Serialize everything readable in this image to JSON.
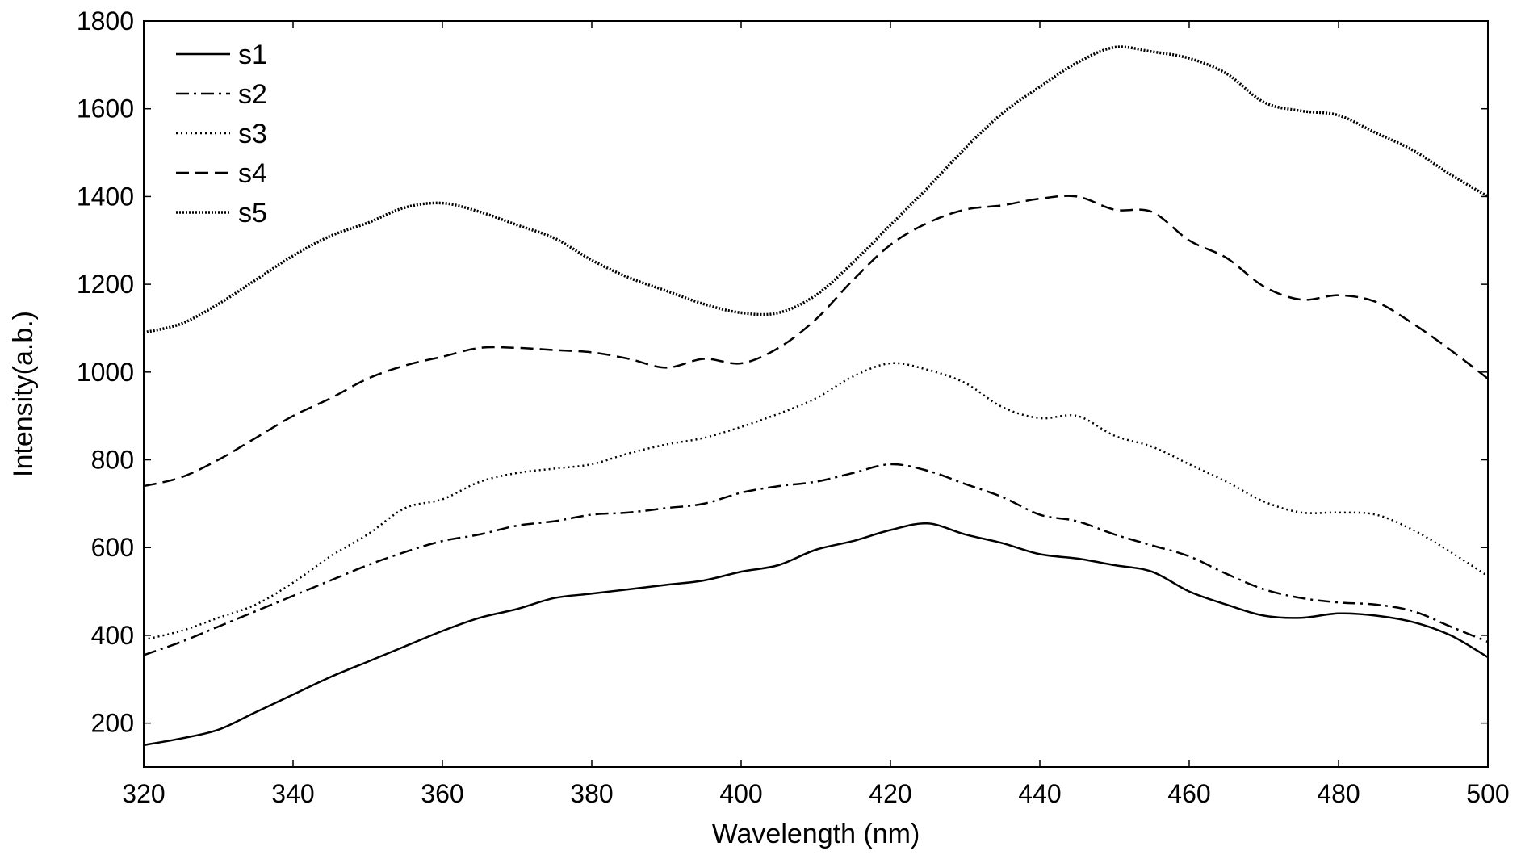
{
  "chart_data": {
    "type": "line",
    "title": "",
    "xlabel": "Wavelength (nm)",
    "ylabel": "Intensity(a.b.)",
    "xlim": [
      320,
      500
    ],
    "ylim": [
      100,
      1800
    ],
    "xticks": [
      320,
      340,
      360,
      380,
      400,
      420,
      440,
      460,
      480,
      500
    ],
    "yticks": [
      200,
      400,
      600,
      800,
      1000,
      1200,
      1400,
      1600,
      1800
    ],
    "grid": false,
    "legend_position": "top-left",
    "line_color": "#000000",
    "series": [
      {
        "name": "s1",
        "style": "solid",
        "x": [
          320,
          325,
          330,
          335,
          340,
          345,
          350,
          355,
          360,
          365,
          370,
          375,
          380,
          385,
          390,
          395,
          400,
          405,
          410,
          415,
          420,
          425,
          430,
          435,
          440,
          445,
          450,
          455,
          460,
          465,
          470,
          475,
          480,
          485,
          490,
          495,
          500
        ],
        "y": [
          150,
          165,
          185,
          225,
          265,
          305,
          340,
          375,
          410,
          440,
          460,
          485,
          495,
          505,
          515,
          525,
          545,
          560,
          595,
          615,
          640,
          655,
          630,
          610,
          585,
          575,
          560,
          545,
          500,
          470,
          445,
          440,
          450,
          445,
          430,
          400,
          350
        ]
      },
      {
        "name": "s2",
        "style": "dashdot",
        "x": [
          320,
          325,
          330,
          335,
          340,
          345,
          350,
          355,
          360,
          365,
          370,
          375,
          380,
          385,
          390,
          395,
          400,
          405,
          410,
          415,
          420,
          425,
          430,
          435,
          440,
          445,
          450,
          455,
          460,
          465,
          470,
          475,
          480,
          485,
          490,
          495,
          500
        ],
        "y": [
          355,
          385,
          420,
          455,
          490,
          525,
          560,
          590,
          615,
          630,
          650,
          660,
          675,
          680,
          690,
          700,
          725,
          740,
          750,
          770,
          790,
          775,
          745,
          715,
          675,
          660,
          630,
          605,
          580,
          540,
          505,
          485,
          475,
          470,
          455,
          420,
          385
        ]
      },
      {
        "name": "s3",
        "style": "dotted",
        "x": [
          320,
          325,
          330,
          335,
          340,
          345,
          350,
          355,
          360,
          365,
          370,
          375,
          380,
          385,
          390,
          395,
          400,
          405,
          410,
          415,
          420,
          425,
          430,
          435,
          440,
          445,
          450,
          455,
          460,
          465,
          470,
          475,
          480,
          485,
          490,
          495,
          500
        ],
        "y": [
          390,
          410,
          440,
          470,
          520,
          580,
          630,
          690,
          710,
          750,
          770,
          780,
          790,
          815,
          835,
          850,
          875,
          905,
          940,
          990,
          1020,
          1005,
          975,
          920,
          895,
          900,
          855,
          830,
          790,
          750,
          705,
          680,
          680,
          675,
          640,
          590,
          535
        ]
      },
      {
        "name": "s4",
        "style": "dashed",
        "x": [
          320,
          325,
          330,
          335,
          340,
          345,
          350,
          355,
          360,
          365,
          370,
          375,
          380,
          385,
          390,
          395,
          400,
          405,
          410,
          415,
          420,
          425,
          430,
          435,
          440,
          445,
          450,
          455,
          460,
          465,
          470,
          475,
          480,
          485,
          490,
          495,
          500
        ],
        "y": [
          740,
          760,
          800,
          850,
          900,
          940,
          985,
          1015,
          1035,
          1055,
          1055,
          1050,
          1045,
          1030,
          1010,
          1030,
          1020,
          1055,
          1120,
          1210,
          1290,
          1340,
          1370,
          1380,
          1395,
          1400,
          1370,
          1365,
          1300,
          1260,
          1195,
          1165,
          1175,
          1160,
          1110,
          1050,
          985
        ]
      },
      {
        "name": "s5",
        "style": "dotted-heavy",
        "x": [
          320,
          325,
          330,
          335,
          340,
          345,
          350,
          355,
          360,
          365,
          370,
          375,
          380,
          385,
          390,
          395,
          400,
          405,
          410,
          415,
          420,
          425,
          430,
          435,
          440,
          445,
          450,
          455,
          460,
          465,
          470,
          475,
          480,
          485,
          490,
          495,
          500
        ],
        "y": [
          1090,
          1110,
          1155,
          1210,
          1265,
          1310,
          1340,
          1375,
          1385,
          1365,
          1335,
          1305,
          1255,
          1215,
          1185,
          1155,
          1135,
          1135,
          1175,
          1250,
          1335,
          1420,
          1510,
          1590,
          1650,
          1705,
          1740,
          1730,
          1715,
          1680,
          1615,
          1595,
          1585,
          1545,
          1505,
          1450,
          1400
        ]
      }
    ]
  }
}
